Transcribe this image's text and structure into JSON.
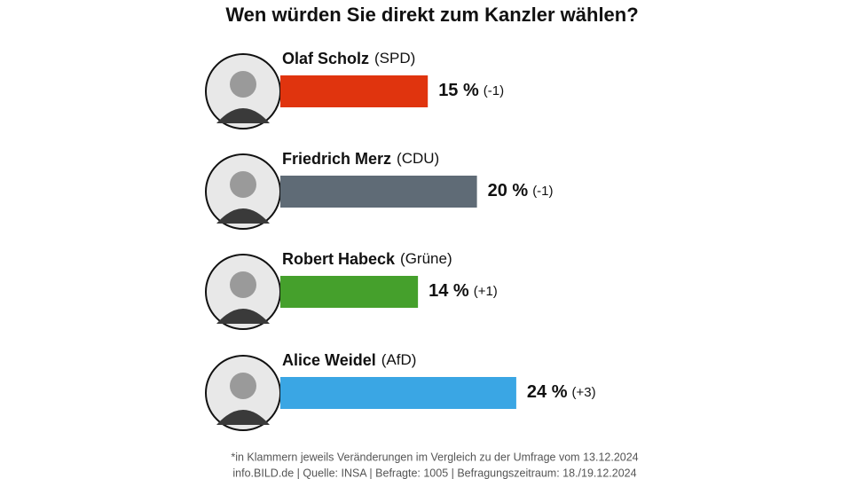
{
  "chart_data": {
    "type": "bar",
    "title": "Wen würden Sie direkt zum Kanzler wählen?",
    "categories": [
      "Olaf Scholz",
      "Friedrich Merz",
      "Robert Habeck",
      "Alice Weidel"
    ],
    "parties": [
      "(SPD)",
      "(CDU)",
      "(Grüne)",
      "(AfD)"
    ],
    "values": [
      15,
      20,
      14,
      24
    ],
    "value_labels": [
      "15 %",
      "20 %",
      "14 %",
      "24 %"
    ],
    "changes": [
      "(-1)",
      "(-1)",
      "(+1)",
      "(+3)"
    ],
    "colors": [
      "#e0340e",
      "#5f6b76",
      "#45a02c",
      "#3aa6e4"
    ],
    "footnote": "*in Klammern jeweils Veränderungen im Vergleich zu der Umfrage vom 13.12.2024",
    "source": "info.BILD.de | Quelle: INSA | Befragte: 1005 | Befragungszeitraum: 18./19.12.2024"
  }
}
